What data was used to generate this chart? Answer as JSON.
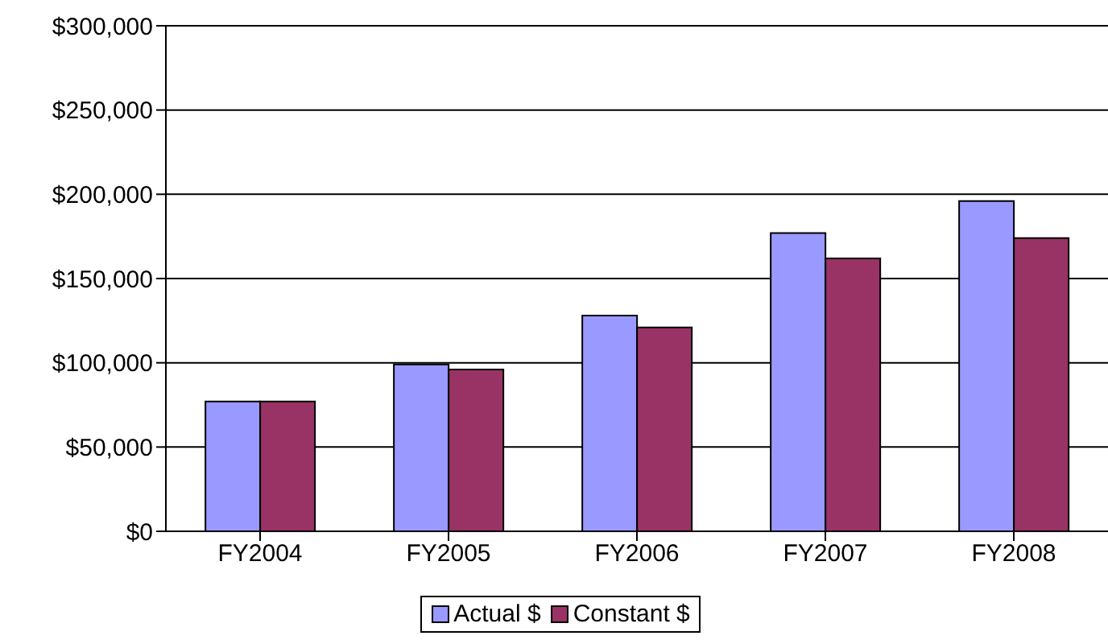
{
  "chart_data": {
    "type": "bar",
    "categories": [
      "FY2004",
      "FY2005",
      "FY2006",
      "FY2007",
      "FY2008"
    ],
    "series": [
      {
        "name": "Actual $",
        "color": "#9999ff",
        "values": [
          77000,
          99000,
          128000,
          177000,
          196000
        ]
      },
      {
        "name": "Constant $",
        "color": "#993366",
        "values": [
          77000,
          96000,
          121000,
          162000,
          174000
        ]
      }
    ],
    "ylim": [
      0,
      300000
    ],
    "yticks": [
      {
        "value": 0,
        "label": "$0"
      },
      {
        "value": 50000,
        "label": "$50,000"
      },
      {
        "value": 100000,
        "label": "$100,000"
      },
      {
        "value": 150000,
        "label": "$150,000"
      },
      {
        "value": 200000,
        "label": "$200,000"
      },
      {
        "value": 250000,
        "label": "$250,000"
      },
      {
        "value": 300000,
        "label": "$300,000"
      }
    ],
    "grid": "y",
    "legend": "bottom"
  }
}
